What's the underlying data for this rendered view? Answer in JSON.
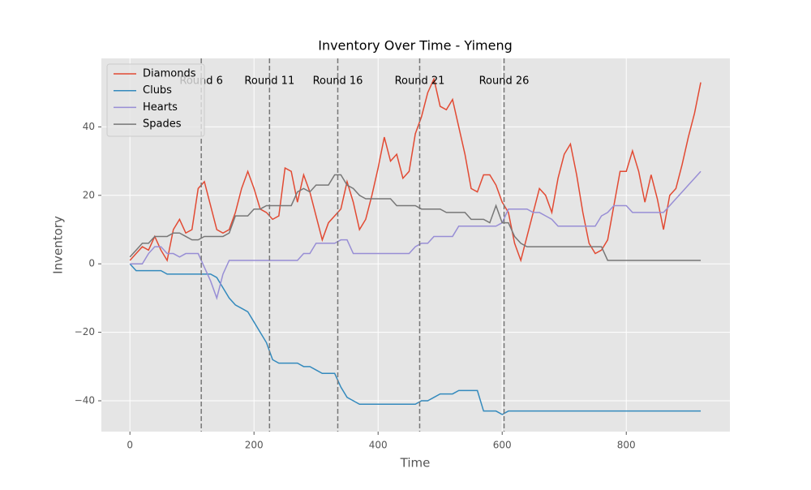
{
  "chart_data": {
    "type": "line",
    "title": "Inventory Over Time - Yimeng",
    "x_label": "Time",
    "y_label": "Inventory",
    "x": [
      0,
      10,
      20,
      30,
      40,
      50,
      60,
      70,
      80,
      90,
      100,
      110,
      120,
      130,
      140,
      150,
      160,
      170,
      180,
      190,
      200,
      210,
      220,
      230,
      240,
      250,
      260,
      270,
      280,
      290,
      300,
      310,
      320,
      330,
      340,
      350,
      360,
      370,
      380,
      390,
      400,
      410,
      420,
      430,
      440,
      450,
      460,
      470,
      480,
      490,
      500,
      510,
      520,
      530,
      540,
      550,
      560,
      570,
      580,
      590,
      600,
      610,
      620,
      630,
      640,
      650,
      660,
      670,
      680,
      690,
      700,
      710,
      720,
      730,
      740,
      750,
      760,
      770,
      780,
      790,
      800,
      810,
      820,
      830,
      840,
      850,
      860,
      870,
      880,
      890,
      900,
      910,
      920
    ],
    "series": [
      {
        "name": "Diamonds",
        "color": "#E24A33",
        "values": [
          1,
          3,
          5,
          4,
          8,
          4,
          1,
          10,
          13,
          9,
          10,
          22,
          24,
          17,
          10,
          9,
          10,
          15,
          22,
          27,
          22,
          16,
          15,
          13,
          14,
          28,
          27,
          18,
          26,
          21,
          14,
          7,
          12,
          14,
          16,
          24,
          18,
          10,
          13,
          20,
          28,
          37,
          30,
          32,
          25,
          27,
          38,
          43,
          50,
          54,
          46,
          45,
          48,
          40,
          32,
          22,
          21,
          26,
          26,
          23,
          18,
          15,
          6,
          1,
          8,
          15,
          22,
          20,
          15,
          25,
          32,
          35,
          26,
          15,
          6,
          3,
          4,
          7,
          17,
          27,
          27,
          33,
          27,
          18,
          26,
          19,
          10,
          20,
          22,
          29,
          37,
          44,
          53
        ]
      },
      {
        "name": "Clubs",
        "color": "#348ABD",
        "values": [
          0,
          -2,
          -2,
          -2,
          -2,
          -2,
          -3,
          -3,
          -3,
          -3,
          -3,
          -3,
          -3,
          -3,
          -4,
          -7,
          -10,
          -12,
          -13,
          -14,
          -17,
          -20,
          -23,
          -28,
          -29,
          -29,
          -29,
          -29,
          -30,
          -30,
          -31,
          -32,
          -32,
          -32,
          -36,
          -39,
          -40,
          -41,
          -41,
          -41,
          -41,
          -41,
          -41,
          -41,
          -41,
          -41,
          -41,
          -40,
          -40,
          -39,
          -38,
          -38,
          -38,
          -37,
          -37,
          -37,
          -37,
          -43,
          -43,
          -43,
          -44,
          -43,
          -43,
          -43,
          -43,
          -43,
          -43,
          -43,
          -43,
          -43,
          -43,
          -43,
          -43,
          -43,
          -43,
          -43,
          -43,
          -43,
          -43,
          -43,
          -43,
          -43,
          -43,
          -43,
          -43,
          -43,
          -43,
          -43,
          -43,
          -43,
          -43,
          -43,
          -43
        ]
      },
      {
        "name": "Hearts",
        "color": "#988ED5",
        "values": [
          0,
          0,
          0,
          3,
          5,
          5,
          3,
          3,
          2,
          3,
          3,
          3,
          -1,
          -5,
          -10,
          -3,
          1,
          1,
          1,
          1,
          1,
          1,
          1,
          1,
          1,
          1,
          1,
          1,
          3,
          3,
          6,
          6,
          6,
          6,
          7,
          7,
          3,
          3,
          3,
          3,
          3,
          3,
          3,
          3,
          3,
          3,
          5,
          6,
          6,
          8,
          8,
          8,
          8,
          11,
          11,
          11,
          11,
          11,
          11,
          11,
          12,
          16,
          16,
          16,
          16,
          15,
          15,
          14,
          13,
          11,
          11,
          11,
          11,
          11,
          11,
          11,
          14,
          15,
          17,
          17,
          17,
          15,
          15,
          15,
          15,
          15,
          15,
          17,
          19,
          21,
          23,
          25,
          27
        ]
      },
      {
        "name": "Spades",
        "color": "#777777",
        "values": [
          2,
          4,
          6,
          6,
          8,
          8,
          8,
          9,
          9,
          8,
          7,
          7,
          8,
          8,
          8,
          8,
          9,
          14,
          14,
          14,
          16,
          16,
          17,
          17,
          17,
          17,
          17,
          21,
          22,
          21,
          23,
          23,
          23,
          26,
          26,
          23,
          22,
          20,
          19,
          19,
          19,
          19,
          19,
          17,
          17,
          17,
          17,
          16,
          16,
          16,
          16,
          15,
          15,
          15,
          15,
          13,
          13,
          13,
          12,
          17,
          12,
          12,
          8,
          6,
          5,
          5,
          5,
          5,
          5,
          5,
          5,
          5,
          5,
          5,
          5,
          5,
          5,
          1,
          1,
          1,
          1,
          1,
          1,
          1,
          1,
          1,
          1,
          1,
          1,
          1,
          1,
          1,
          1
        ]
      }
    ],
    "vlines": [
      {
        "x": 115,
        "label": "Round 6"
      },
      {
        "x": 225,
        "label": "Round 11"
      },
      {
        "x": 335,
        "label": "Round 16"
      },
      {
        "x": 467,
        "label": "Round 21"
      },
      {
        "x": 603,
        "label": "Round 26"
      }
    ],
    "xlim": [
      -46,
      967
    ],
    "ylim": [
      -49,
      60
    ],
    "xticks": [
      0,
      200,
      400,
      600,
      800
    ],
    "yticks": [
      {
        "value": -40,
        "label": "−40"
      },
      {
        "value": -20,
        "label": "−20"
      },
      0,
      20,
      40
    ],
    "grid": true,
    "legend": "upper left"
  }
}
